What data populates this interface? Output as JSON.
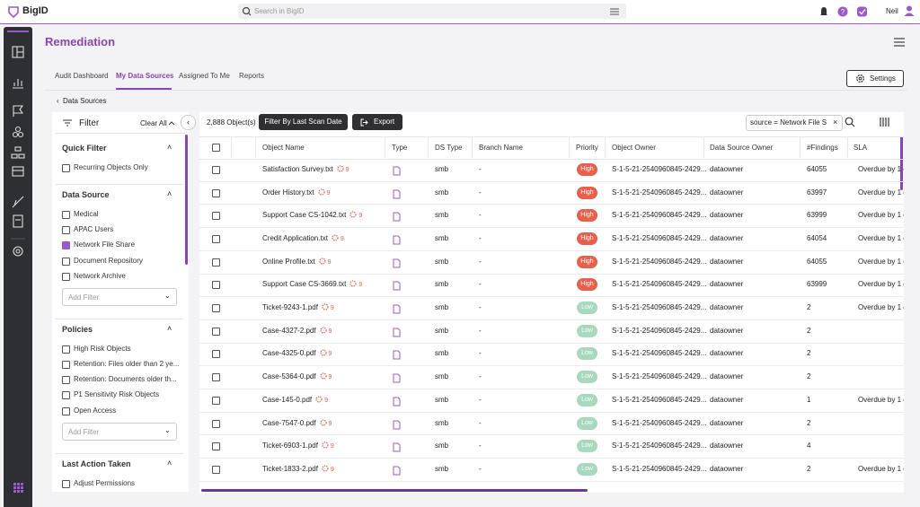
{
  "topbar": {
    "logo": "BigID",
    "search_placeholder": "Search in BigID",
    "user": "Neil"
  },
  "header": {
    "title": "Remediation"
  },
  "tabs": {
    "items": [
      "Audit Dashboard",
      "My Data Sources",
      "Assigned To Me",
      "Reports"
    ],
    "active": 1
  },
  "settings_button": "Settings",
  "breadcrumb": "Data Sources",
  "filter": {
    "title": "Filter",
    "clear": "Clear All",
    "sections": [
      {
        "title": "Quick Filter",
        "options": [
          {
            "label": "Recurring Objects Only",
            "checked": false
          }
        ]
      },
      {
        "title": "Data Source",
        "options": [
          {
            "label": "Medical",
            "checked": false
          },
          {
            "label": "APAC Users",
            "checked": false
          },
          {
            "label": "Network File Share",
            "checked": true
          },
          {
            "label": "Document Repository",
            "checked": false
          },
          {
            "label": "Network Archive",
            "checked": false
          }
        ],
        "add_filter": "Add Filter"
      },
      {
        "title": "Policies",
        "options": [
          {
            "label": "High Risk Objects",
            "checked": false
          },
          {
            "label": "Retention: Files older than 2 ye...",
            "checked": false
          },
          {
            "label": "Retention: Documents older th...",
            "checked": false
          },
          {
            "label": "P1 Sensitivity Risk Objects",
            "checked": false
          },
          {
            "label": "Open Access",
            "checked": false
          }
        ],
        "add_filter": "Add Filter"
      },
      {
        "title": "Last Action Taken",
        "options": [
          {
            "label": "Adjust Permissions",
            "checked": false
          }
        ]
      }
    ]
  },
  "toolbar": {
    "count": "2,888 Object(s)",
    "filter_button": "Filter By Last Scan Date",
    "export_button": "Export",
    "search_chip": "source = Network File S"
  },
  "table": {
    "columns": [
      "Object Name",
      "Type",
      "DS Type",
      "Branch Name",
      "Priority",
      "Object Owner",
      "Data Source Owner",
      "#Findings",
      "SLA"
    ],
    "rows": [
      {
        "name": "Satisfaction Survey.txt",
        "alerts": 9,
        "ds_type": "smb",
        "branch": "-",
        "priority": "High",
        "owner": "S-1-5-21-2540960845-2429...",
        "ds_owner": "dataowner",
        "findings": 64055,
        "sla": "Overdue by 1 c"
      },
      {
        "name": "Order History.txt",
        "alerts": 9,
        "ds_type": "smb",
        "branch": "-",
        "priority": "High",
        "owner": "S-1-5-21-2540960845-2429...",
        "ds_owner": "dataowner",
        "findings": 63997,
        "sla": "Overdue by 1 c"
      },
      {
        "name": "Support Case CS-1042.txt",
        "alerts": 9,
        "ds_type": "smb",
        "branch": "-",
        "priority": "High",
        "owner": "S-1-5-21-2540960845-2429...",
        "ds_owner": "dataowner",
        "findings": 63999,
        "sla": "Overdue by 1 c"
      },
      {
        "name": "Credit Application.txt",
        "alerts": 9,
        "ds_type": "smb",
        "branch": "-",
        "priority": "High",
        "owner": "S-1-5-21-2540960845-2429...",
        "ds_owner": "dataowner",
        "findings": 64054,
        "sla": "Overdue by 1 c"
      },
      {
        "name": "Online Profile.txt",
        "alerts": 9,
        "ds_type": "smb",
        "branch": "-",
        "priority": "High",
        "owner": "S-1-5-21-2540960845-2429...",
        "ds_owner": "dataowner",
        "findings": 64055,
        "sla": "Overdue by 1 c"
      },
      {
        "name": "Support Case CS-3669.txt",
        "alerts": 9,
        "ds_type": "smb",
        "branch": "-",
        "priority": "High",
        "owner": "S-1-5-21-2540960845-2429...",
        "ds_owner": "dataowner",
        "findings": 63999,
        "sla": "Overdue by 1 c"
      },
      {
        "name": "Ticket-9243-1.pdf",
        "alerts": 9,
        "ds_type": "smb",
        "branch": "-",
        "priority": "Low",
        "owner": "S-1-5-21-2540960845-2429...",
        "ds_owner": "dataowner",
        "findings": 2,
        "sla": "Overdue by 1 c"
      },
      {
        "name": "Case-4327-2.pdf",
        "alerts": 9,
        "ds_type": "smb",
        "branch": "-",
        "priority": "Low",
        "owner": "S-1-5-21-2540960845-2429...",
        "ds_owner": "dataowner",
        "findings": 2,
        "sla": null
      },
      {
        "name": "Case-4325-0.pdf",
        "alerts": 9,
        "ds_type": "smb",
        "branch": "-",
        "priority": "Low",
        "owner": "S-1-5-21-2540960845-2429...",
        "ds_owner": "dataowner",
        "findings": 2,
        "sla": null
      },
      {
        "name": "Case-5364-0.pdf",
        "alerts": 9,
        "ds_type": "smb",
        "branch": "-",
        "priority": "Low",
        "owner": "S-1-5-21-2540960845-2429...",
        "ds_owner": "dataowner",
        "findings": 2,
        "sla": null
      },
      {
        "name": "Case-145-0.pdf",
        "alerts": 9,
        "ds_type": "smb",
        "branch": "-",
        "priority": "Low",
        "owner": "S-1-5-21-2540960845-2429...",
        "ds_owner": "dataowner",
        "findings": 1,
        "sla": "Overdue by 1 c"
      },
      {
        "name": "Case-7547-0.pdf",
        "alerts": 9,
        "ds_type": "smb",
        "branch": "-",
        "priority": "Low",
        "owner": "S-1-5-21-2540960845-2429...",
        "ds_owner": "dataowner",
        "findings": 2,
        "sla": null
      },
      {
        "name": "Ticket-6903-1.pdf",
        "alerts": 9,
        "ds_type": "smb",
        "branch": "-",
        "priority": "Low",
        "owner": "S-1-5-21-2540960845-2429...",
        "ds_owner": "dataowner",
        "findings": 4,
        "sla": null
      },
      {
        "name": "Ticket-1833-2.pdf",
        "alerts": 9,
        "ds_type": "smb",
        "branch": "-",
        "priority": "Low",
        "owner": "S-1-5-21-2540960845-2429...",
        "ds_owner": "dataowner",
        "findings": 2,
        "sla": "Overdue by 1 c"
      }
    ]
  }
}
